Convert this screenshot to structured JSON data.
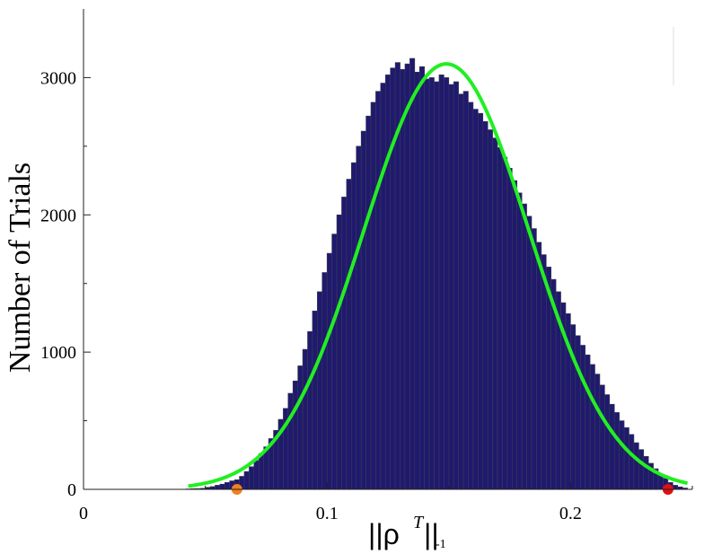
{
  "chart_data": {
    "type": "bar",
    "subtype": "histogram",
    "ylabel": "Number of Trials",
    "xlabel": {
      "main": "||ρ",
      "superscript": "T",
      "close": "||",
      "subscript": "-1"
    },
    "xlim": [
      0,
      0.25
    ],
    "ylim": [
      0,
      3500
    ],
    "xticks": [
      0,
      0.1,
      0.2
    ],
    "xtick_labels": [
      "0",
      "0.1",
      "0.2"
    ],
    "yticks": [
      0,
      1000,
      2000,
      3000
    ],
    "ytick_labels": [
      "0",
      "1000",
      "2000",
      "3000"
    ],
    "bar_color": "#1f1a6e",
    "bar_edge_color": "#3a3a52",
    "fit_color": "#22ee22",
    "bin_width": 0.002,
    "bin_centers": [
      0.043,
      0.045,
      0.047,
      0.049,
      0.051,
      0.053,
      0.055,
      0.057,
      0.059,
      0.061,
      0.063,
      0.065,
      0.067,
      0.069,
      0.071,
      0.073,
      0.075,
      0.077,
      0.079,
      0.081,
      0.083,
      0.085,
      0.087,
      0.089,
      0.091,
      0.093,
      0.095,
      0.097,
      0.099,
      0.101,
      0.103,
      0.105,
      0.107,
      0.109,
      0.111,
      0.113,
      0.115,
      0.117,
      0.119,
      0.121,
      0.123,
      0.125,
      0.127,
      0.129,
      0.131,
      0.133,
      0.135,
      0.137,
      0.139,
      0.141,
      0.143,
      0.145,
      0.147,
      0.149,
      0.151,
      0.153,
      0.155,
      0.157,
      0.159,
      0.161,
      0.163,
      0.165,
      0.167,
      0.169,
      0.171,
      0.173,
      0.175,
      0.177,
      0.179,
      0.181,
      0.183,
      0.185,
      0.187,
      0.189,
      0.191,
      0.193,
      0.195,
      0.197,
      0.199,
      0.201,
      0.203,
      0.205,
      0.207,
      0.209,
      0.211,
      0.213,
      0.215,
      0.217,
      0.219,
      0.221,
      0.223,
      0.225,
      0.227,
      0.229,
      0.231,
      0.233,
      0.235,
      0.237,
      0.239,
      0.241,
      0.243,
      0.245,
      0.247
    ],
    "counts": [
      3,
      5,
      6,
      8,
      15,
      20,
      30,
      38,
      50,
      62,
      70,
      95,
      130,
      165,
      210,
      260,
      310,
      370,
      430,
      510,
      590,
      700,
      790,
      900,
      1020,
      1150,
      1300,
      1440,
      1580,
      1720,
      1860,
      2000,
      2130,
      2260,
      2380,
      2500,
      2610,
      2720,
      2820,
      2900,
      2960,
      3020,
      3070,
      3110,
      3060,
      3100,
      3140,
      3040,
      3080,
      2990,
      3000,
      2970,
      3020,
      3000,
      2950,
      2970,
      2880,
      2900,
      2820,
      2770,
      2740,
      2680,
      2620,
      2560,
      2490,
      2420,
      2340,
      2250,
      2160,
      2080,
      1990,
      1900,
      1800,
      1710,
      1620,
      1530,
      1440,
      1360,
      1280,
      1200,
      1120,
      1050,
      980,
      910,
      840,
      760,
      690,
      620,
      560,
      500,
      450,
      400,
      340,
      290,
      240,
      190,
      150,
      110,
      80,
      50,
      30,
      18,
      10
    ],
    "fit_curve": {
      "type": "gaussian",
      "mu": 0.149,
      "sigma": 0.034,
      "peak": 3100,
      "x_range": [
        0.043,
        0.248
      ]
    },
    "markers": [
      {
        "x": 0.063,
        "y": 0,
        "color": "#f08020"
      },
      {
        "x": 0.24,
        "y": 0,
        "color": "#e01010"
      }
    ]
  }
}
